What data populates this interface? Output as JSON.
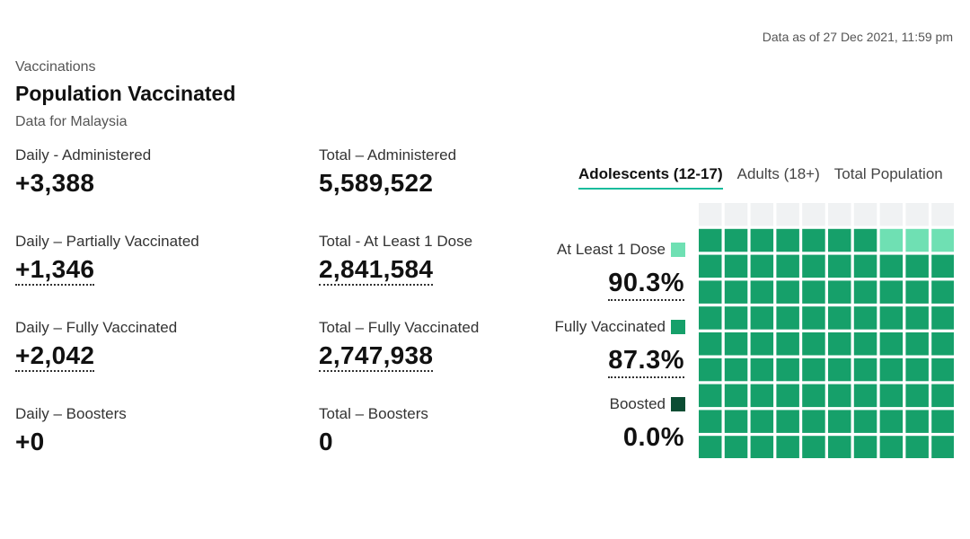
{
  "as_of": "Data as of 27 Dec 2021, 11:59 pm",
  "section": "Vaccinations",
  "title": "Population Vaccinated",
  "subtitle": "Data for Malaysia",
  "daily": [
    {
      "label": "Daily - Administered",
      "value": "+3,388"
    },
    {
      "label": "Daily – Partially Vaccinated",
      "value": "+1,346"
    },
    {
      "label": "Daily – Fully Vaccinated",
      "value": "+2,042"
    },
    {
      "label": "Daily – Boosters",
      "value": "+0"
    }
  ],
  "total": [
    {
      "label": "Total – Administered",
      "value": "5,589,522"
    },
    {
      "label": "Total - At Least 1 Dose",
      "value": "2,841,584"
    },
    {
      "label": "Total – Fully Vaccinated",
      "value": "2,747,938"
    },
    {
      "label": "Total – Boosters",
      "value": "0"
    }
  ],
  "tabs": [
    {
      "label": "Adolescents (12-17)",
      "active": true
    },
    {
      "label": "Adults (18+)",
      "active": false
    },
    {
      "label": "Total Population",
      "active": false
    }
  ],
  "legend": [
    {
      "label": "At Least 1 Dose",
      "color": "#6fe0b3",
      "pct": "90.3%"
    },
    {
      "label": "Fully Vaccinated",
      "color": "#16a06a",
      "pct": "87.3%"
    },
    {
      "label": "Boosted",
      "color": "#0b4d33",
      "pct": "0.0%"
    }
  ],
  "waffle": {
    "empty_color": "#f0f2f3",
    "partial_color": "#6fe0b3",
    "full_color": "#16a06a",
    "boosted_color": "#0b4d33",
    "at_least_1_dose_pct": 90.3,
    "fully_vaccinated_pct": 87.3,
    "boosted_pct": 0.0
  }
}
